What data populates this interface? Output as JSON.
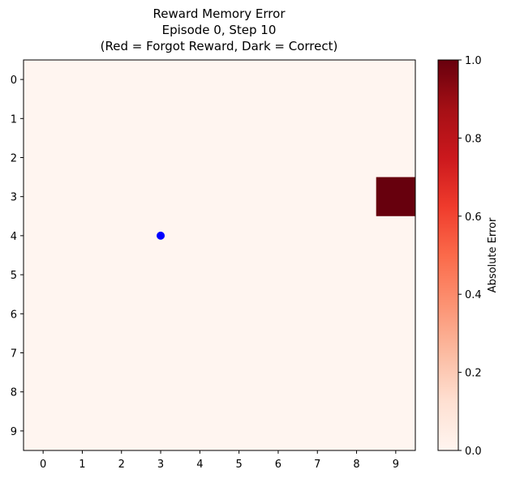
{
  "chart_data": {
    "type": "heatmap",
    "title_lines": [
      "Reward Memory Error",
      "Episode 0, Step 10",
      "(Red = Forgot Reward, Dark = Correct)"
    ],
    "x_ticks": [
      "0",
      "1",
      "2",
      "3",
      "4",
      "5",
      "6",
      "7",
      "8",
      "9"
    ],
    "y_ticks": [
      "0",
      "1",
      "2",
      "3",
      "4",
      "5",
      "6",
      "7",
      "8",
      "9"
    ],
    "grid_size": [
      10,
      10
    ],
    "cells": [
      {
        "row": 3,
        "col": 9,
        "value": 1.0
      }
    ],
    "default_value": 0.0,
    "value_range": [
      0.0,
      1.0
    ],
    "colormap": "Reds",
    "low_color": "#fff5f0",
    "high_color": "#67000d",
    "agent_marker": {
      "row": 4,
      "col": 3,
      "color": "#0000ff"
    },
    "colorbar": {
      "label": "Absolute Error",
      "ticks": [
        "0.0",
        "0.2",
        "0.4",
        "0.6",
        "0.8",
        "1.0"
      ],
      "tick_values": [
        0.0,
        0.2,
        0.4,
        0.6,
        0.8,
        1.0
      ]
    }
  }
}
